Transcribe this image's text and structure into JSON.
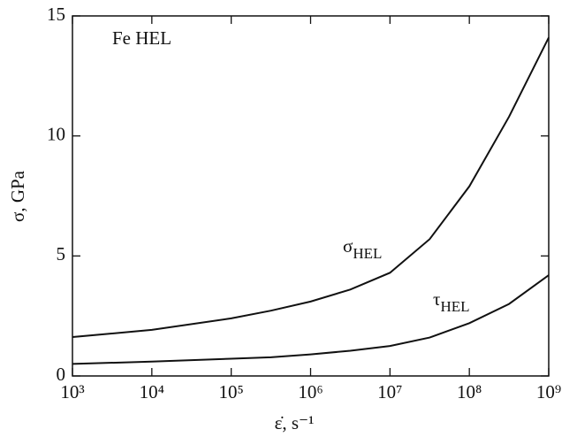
{
  "chart_data": {
    "type": "line",
    "x_label": "ε̇, s⁻¹",
    "y_label": "σ, GPa",
    "annotations": [
      "Fe HEL"
    ],
    "x": [
      1000,
      10000,
      100000,
      316228,
      1000000,
      3162278,
      10000000,
      31622777,
      100000000,
      316227766,
      1000000000
    ],
    "series": [
      {
        "name": "σHEL",
        "color": "#111111",
        "values": [
          1.62,
          1.92,
          2.4,
          2.72,
          3.1,
          3.6,
          4.3,
          5.7,
          7.9,
          10.8,
          14.1
        ]
      },
      {
        "name": "τHEL",
        "color": "#111111",
        "values": [
          0.5,
          0.6,
          0.72,
          0.78,
          0.9,
          1.05,
          1.25,
          1.6,
          2.2,
          3.0,
          4.2
        ]
      }
    ],
    "xscale": "log",
    "xlim": [
      1000,
      1000000000
    ],
    "xticks": [
      {
        "value": 1000,
        "label": "10³"
      },
      {
        "value": 10000,
        "label": "10⁴"
      },
      {
        "value": 100000,
        "label": "10⁵"
      },
      {
        "value": 1000000,
        "label": "10⁶"
      },
      {
        "value": 10000000,
        "label": "10⁷"
      },
      {
        "value": 100000000,
        "label": "10⁸"
      },
      {
        "value": 1000000000,
        "label": "10⁹"
      }
    ],
    "ylim": [
      0,
      15
    ],
    "yticks": [
      0,
      5,
      10,
      15
    ],
    "grid": false
  }
}
